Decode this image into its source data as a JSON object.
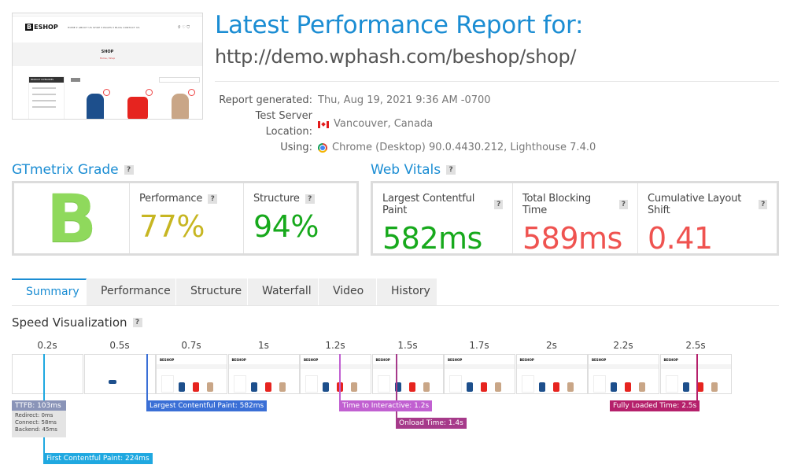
{
  "report": {
    "title": "Latest Performance Report for:",
    "url": "http://demo.wphash.com/beshop/shop/",
    "meta": [
      {
        "label": "Report generated:",
        "value": "Thu, Aug 19, 2021 9:36 AM -0700",
        "icon": ""
      },
      {
        "label": "Test Server Location:",
        "value": "Vancouver, Canada",
        "icon": "canada-flag-icon"
      },
      {
        "label": "Using:",
        "value": "Chrome (Desktop) 90.0.4430.212, Lighthouse 7.4.0",
        "icon": "chrome-icon"
      }
    ]
  },
  "thumbnail": {
    "logo": "BESHOP",
    "logo_badge": "B",
    "logo_rest": "ESHOP",
    "menu": "HOME ▾   ABOUT US   SHOP ▾   PAGES ▾   BLOG   CONTACT US",
    "page_title": "SHOP",
    "breadcrumb": "Home / Shop",
    "sidebar_heading": "PRODUCT CATEGORIES"
  },
  "gtmetrix": {
    "heading": "GTmetrix Grade",
    "grade": "B",
    "performance": {
      "label": "Performance",
      "value": "77%",
      "color": "#c7b622"
    },
    "structure": {
      "label": "Structure",
      "value": "94%",
      "color": "#17a91c"
    }
  },
  "web_vitals": {
    "heading": "Web Vitals",
    "lcp": {
      "label": "Largest Contentful Paint",
      "value": "582ms",
      "color": "#17a91c"
    },
    "tbt": {
      "label": "Total Blocking Time",
      "value": "589ms",
      "color": "#ef5350"
    },
    "cls": {
      "label": "Cumulative Layout Shift",
      "value": "0.41",
      "color": "#ef5350"
    }
  },
  "tabs": [
    "Summary",
    "Performance",
    "Structure",
    "Waterfall",
    "Video",
    "History"
  ],
  "speed": {
    "heading": "Speed Visualization",
    "times": [
      "0.2s",
      "0.5s",
      "0.7s",
      "1s",
      "1.2s",
      "1.5s",
      "1.7s",
      "2s",
      "2.2s",
      "2.5s"
    ],
    "ttfb": "TTFB: 103ms",
    "redirect": "Redirect: 0ms",
    "connect": "Connect: 58ms",
    "backend": "Backend: 45ms",
    "lcp": "Largest Contentful Paint: 582ms",
    "tti": "Time to Interactive: 1.2s",
    "onload": "Onload Time: 1.4s",
    "fully_loaded": "Fully Loaded Time: 2.5s",
    "fcp": "First Contentful Paint: 224ms",
    "colors": {
      "ttfb": "#8a94b8",
      "fcp": "#1fa8e0",
      "lcp": "#3a6fd6",
      "tti": "#c160d1",
      "onload": "#a63a8a",
      "fully": "#b5206b"
    }
  },
  "question_mark": "?"
}
